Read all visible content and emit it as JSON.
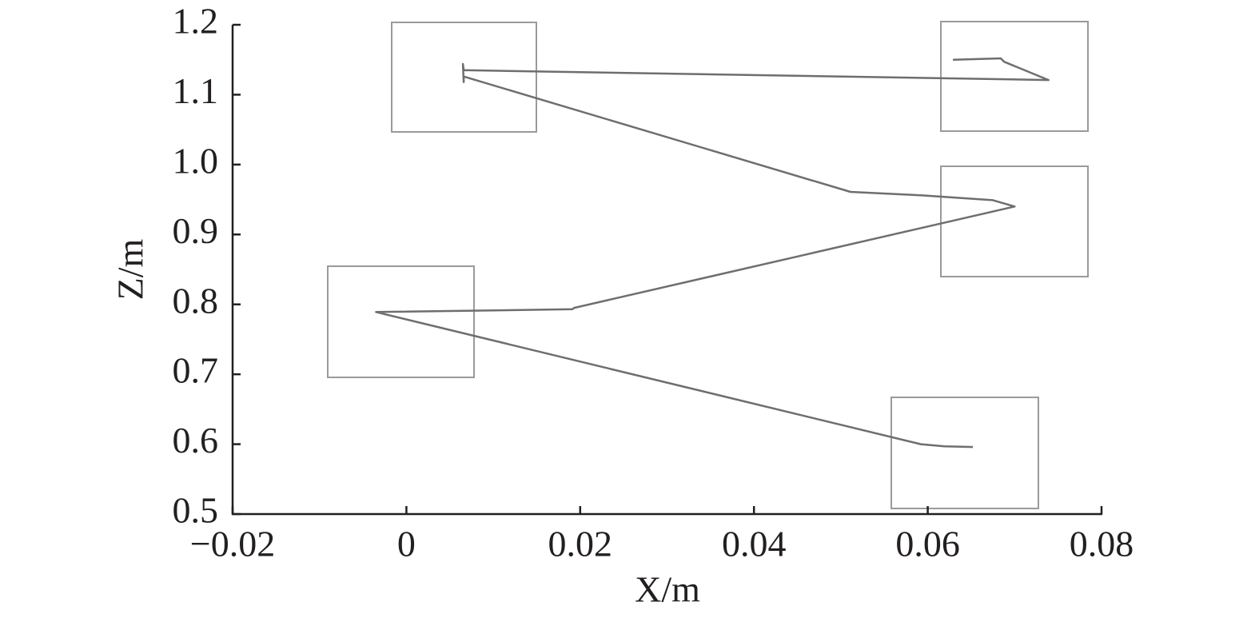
{
  "chart_data": {
    "type": "line",
    "xlabel": "X/m",
    "ylabel": "Z/m",
    "x": [
      0.0629,
      0.0684,
      0.0688,
      0.0739,
      0.0066,
      0.0065,
      0.0066,
      0.0066,
      0.0511,
      0.0592,
      0.0675,
      0.07,
      0.0193,
      0.0191,
      -0.0035,
      0.0592,
      0.0619,
      0.0652
    ],
    "series": [
      {
        "color": "#6e6e6e",
        "values": [
          1.15,
          1.152,
          1.147,
          1.121,
          1.135,
          1.144,
          1.118,
          1.126,
          0.961,
          0.956,
          0.949,
          0.94,
          0.795,
          0.793,
          0.789,
          0.6,
          0.597,
          0.596
        ]
      }
    ],
    "xlim": [
      -0.02,
      0.08
    ],
    "ylim": [
      0.5,
      1.2
    ],
    "xticks": [
      {
        "value": -0.02,
        "label": "−0.02"
      },
      0,
      0.02,
      0.04,
      0.06,
      0.08
    ],
    "yticks": [
      0.5,
      0.6,
      0.7,
      0.8,
      0.9,
      {
        "value": 1.0,
        "label": "1.0"
      },
      1.1,
      1.2
    ]
  }
}
